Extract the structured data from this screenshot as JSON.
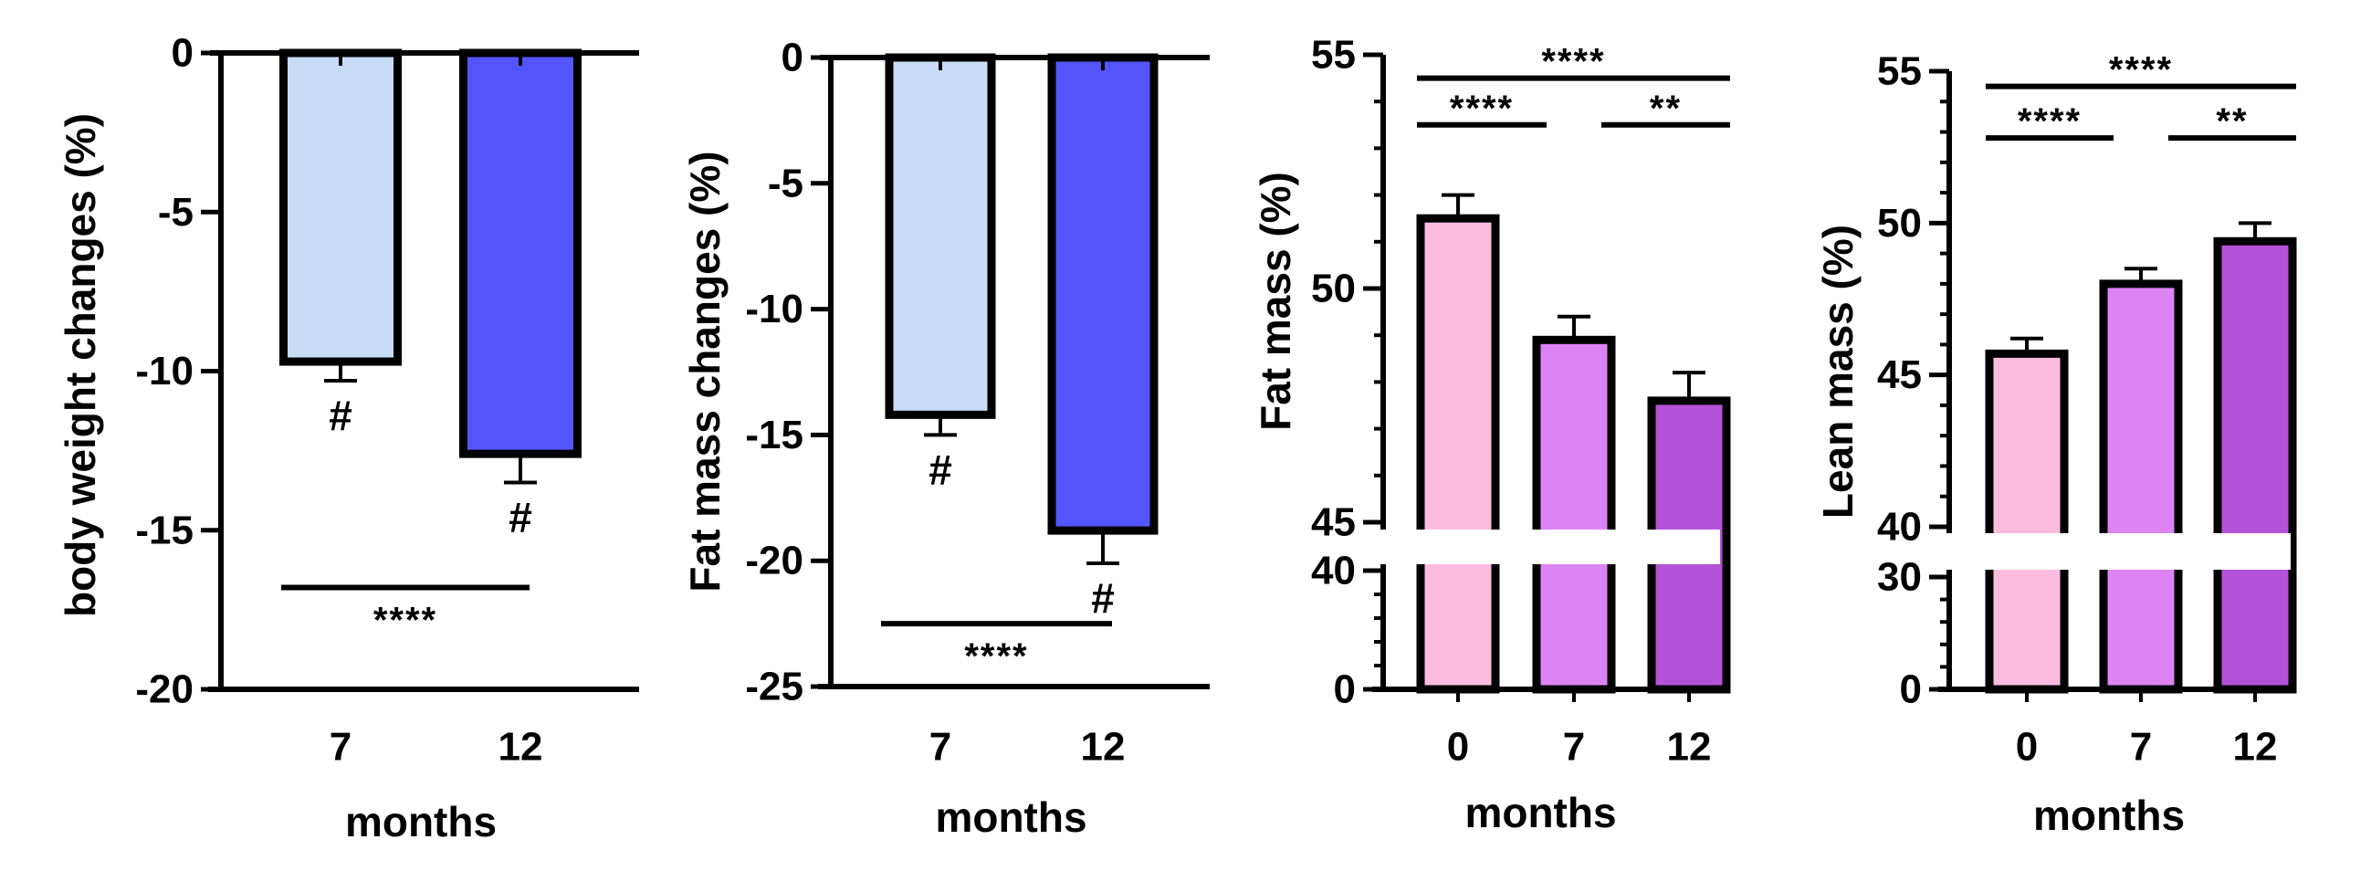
{
  "colors": {
    "light_blue": "#c8dcf8",
    "blue": "#5454fc",
    "pink": "#fcbce0",
    "violet": "#dc84f4",
    "purple": "#b452d8",
    "axis": "#000000"
  },
  "chart_data": [
    {
      "type": "bar",
      "xlabel": "months",
      "ylabel": "body weight changes (%)",
      "categories": [
        "7",
        "12"
      ],
      "values": [
        -9.7,
        -12.6
      ],
      "errors": [
        0.6,
        0.9
      ],
      "ylim": [
        -20,
        0
      ],
      "yticks": [
        0,
        -5,
        -10,
        -15,
        -20
      ],
      "ytick_labels": [
        "0",
        "-5",
        "-10",
        "-15",
        "-20"
      ],
      "bar_colors": [
        "light_blue",
        "blue"
      ],
      "bar_marks": [
        "#",
        "#"
      ],
      "significance": [
        {
          "label": "****",
          "from": 0,
          "to": 1,
          "y": -16.8
        }
      ]
    },
    {
      "type": "bar",
      "xlabel": "months",
      "ylabel": "Fat mass changes (%)",
      "categories": [
        "7",
        "12"
      ],
      "values": [
        -14.2,
        -18.8
      ],
      "errors": [
        0.8,
        1.3
      ],
      "ylim": [
        -25,
        0
      ],
      "yticks": [
        0,
        -5,
        -10,
        -15,
        -20,
        -25
      ],
      "ytick_labels": [
        "0",
        "-5",
        "-10",
        "-15",
        "-20",
        "-25"
      ],
      "bar_colors": [
        "light_blue",
        "blue"
      ],
      "bar_marks": [
        "#",
        "#"
      ],
      "significance": [
        {
          "label": "****",
          "from": 0,
          "to": 1,
          "y": -22.5
        }
      ]
    },
    {
      "type": "bar",
      "xlabel": "months",
      "ylabel": "Fat mass (%)",
      "categories": [
        "0",
        "7",
        "12"
      ],
      "values": [
        51.5,
        48.9,
        47.6
      ],
      "errors": [
        0.5,
        0.5,
        0.6
      ],
      "broken_axis": {
        "lower": [
          0,
          40
        ],
        "upper": [
          45,
          55
        ]
      },
      "yticks": [
        0,
        40,
        45,
        50,
        55
      ],
      "ytick_labels": [
        "0",
        "40",
        "45",
        "50",
        "55"
      ],
      "bar_colors": [
        "pink",
        "violet",
        "purple"
      ],
      "significance": [
        {
          "label": "****",
          "from": 0,
          "to": 2,
          "y": 54.5
        },
        {
          "label": "****",
          "from": 0,
          "to": 1,
          "y": 53.5
        },
        {
          "label": "**",
          "from": 1,
          "to": 2,
          "y": 53.5
        }
      ]
    },
    {
      "type": "bar",
      "xlabel": "months",
      "ylabel": "Lean mass (%)",
      "categories": [
        "0",
        "7",
        "12"
      ],
      "values": [
        45.7,
        48.0,
        49.4
      ],
      "errors": [
        0.5,
        0.5,
        0.6
      ],
      "broken_axis": {
        "lower": [
          0,
          30
        ],
        "upper": [
          40,
          55
        ]
      },
      "yticks": [
        0,
        30,
        40,
        45,
        50,
        55
      ],
      "ytick_labels": [
        "0",
        "30",
        "40",
        "45",
        "50",
        "55"
      ],
      "bar_colors": [
        "pink",
        "violet",
        "purple"
      ],
      "significance": [
        {
          "label": "****",
          "from": 0,
          "to": 2,
          "y": 54.5
        },
        {
          "label": "****",
          "from": 0,
          "to": 1,
          "y": 52.8
        },
        {
          "label": "**",
          "from": 1,
          "to": 2,
          "y": 52.8
        }
      ]
    }
  ]
}
